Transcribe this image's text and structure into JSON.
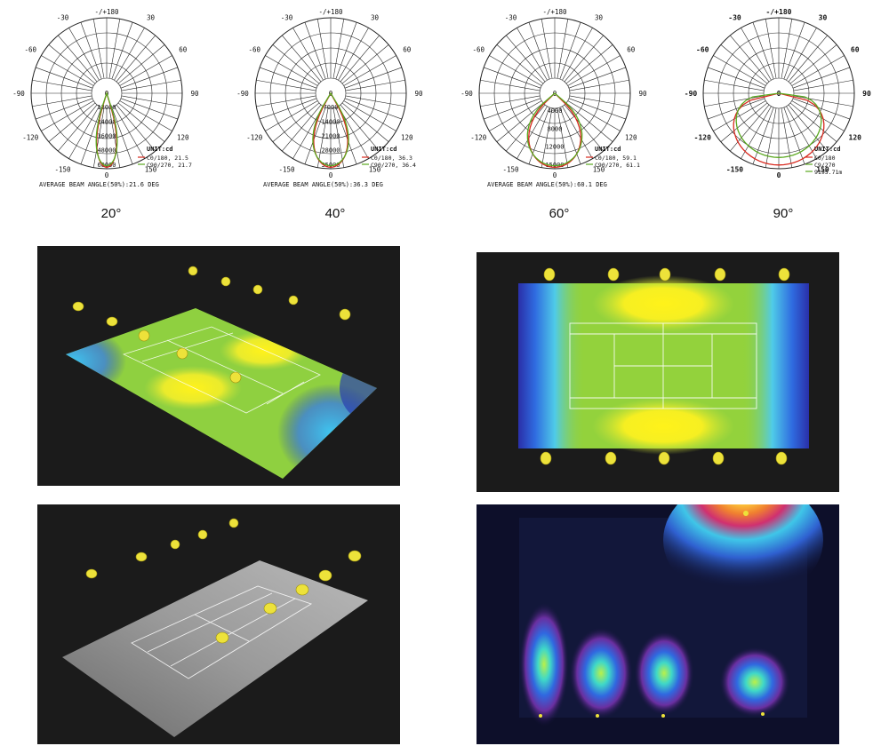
{
  "photometric": [
    {
      "caption": "20°",
      "top_label": "-/+180",
      "angle_labels": [
        "-150",
        "150",
        "-120",
        "120",
        "-90",
        "90",
        "-60",
        "60",
        "-30",
        "30"
      ],
      "bottom_label": "0",
      "center_label": "0",
      "radial_labels": [
        "12000",
        "24000",
        "36000",
        "48000",
        "60000"
      ],
      "unit": "UNIT:cd",
      "legend": [
        {
          "label": "C0/180, 21.5",
          "color": "#d8281d"
        },
        {
          "label": "C90/270, 21.7",
          "color": "#5aa81f"
        }
      ],
      "footer": "AVERAGE BEAM ANGLE(50%):21.6 DEG",
      "beam_half_angle_deg": 11
    },
    {
      "caption": "40°",
      "top_label": "-/+180",
      "angle_labels": [
        "-150",
        "150",
        "-120",
        "120",
        "-90",
        "90",
        "-60",
        "60",
        "-30",
        "30"
      ],
      "bottom_label": "0",
      "center_label": "0",
      "radial_labels": [
        "7000",
        "14000",
        "21000",
        "28000",
        "35000"
      ],
      "unit": "UNIT:cd",
      "legend": [
        {
          "label": "C0/180, 36.3",
          "color": "#d8281d"
        },
        {
          "label": "C90/270, 36.4",
          "color": "#5aa81f"
        }
      ],
      "footer": "AVERAGE BEAM ANGLE(50%):36.3 DEG",
      "beam_half_angle_deg": 19
    },
    {
      "caption": "60°",
      "top_label": "-/+180",
      "angle_labels": [
        "-150",
        "150",
        "-120",
        "120",
        "-90",
        "90",
        "-60",
        "60",
        "-30",
        "30"
      ],
      "bottom_label": "0",
      "center_label": "0",
      "radial_labels": [
        "4000",
        "8000",
        "12000",
        "15000"
      ],
      "unit": "UNIT:cd",
      "legend": [
        {
          "label": "C0/180, 59.1",
          "color": "#d8281d"
        },
        {
          "label": "C90/270, 61.1",
          "color": "#5aa81f"
        }
      ],
      "footer": "AVERAGE BEAM ANGLE(50%):60.1 DEG",
      "beam_half_angle_deg": 30
    },
    {
      "caption": "90°",
      "top_label": "-/+180",
      "angle_labels": [
        "-150",
        "150",
        "-120",
        "120",
        "-90",
        "90",
        "-60",
        "60",
        "-30",
        "30"
      ],
      "bottom_label": "0",
      "center_label": "0",
      "radial_labels": [],
      "unit": "UNIT:cd",
      "legend": [
        {
          "label": "C0/180",
          "color": "#d8281d"
        },
        {
          "label": "C9/270",
          "color": "#5aa81f"
        },
        {
          "label": "9195.71m",
          "color": "#5aa81f"
        }
      ],
      "footer": "",
      "beam_half_angle_deg": 50
    }
  ],
  "renders": [
    {
      "id": "court-3d-colormap"
    },
    {
      "id": "court-topdown-colormap"
    },
    {
      "id": "court-3d-grayscale"
    },
    {
      "id": "wall-wash-colormap"
    }
  ]
}
